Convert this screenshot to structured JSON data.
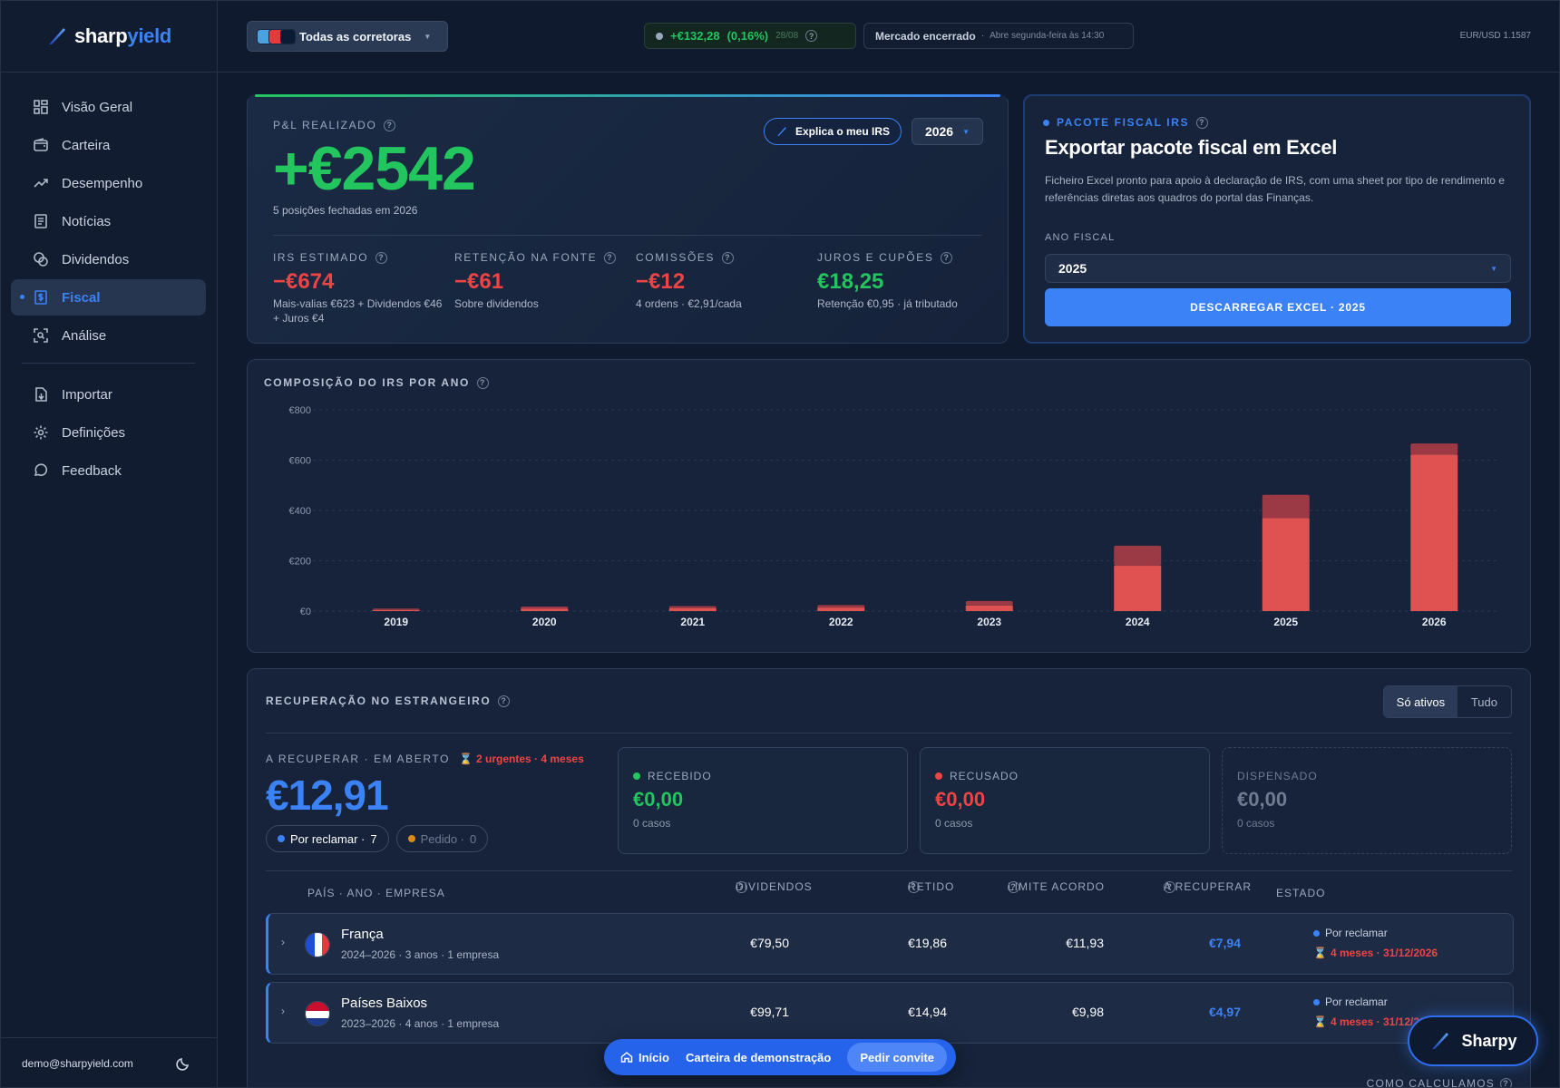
{
  "app": {
    "brand_main": "sharp",
    "brand_accent": "yield",
    "user_email": "demo@sharpyield.com"
  },
  "sidebar": {
    "items": [
      {
        "label": "Visão Geral",
        "icon": "grid-icon"
      },
      {
        "label": "Carteira",
        "icon": "wallet-icon"
      },
      {
        "label": "Desempenho",
        "icon": "trend-icon"
      },
      {
        "label": "Notícias",
        "icon": "newspaper-icon"
      },
      {
        "label": "Dividendos",
        "icon": "coins-icon"
      },
      {
        "label": "Fiscal",
        "icon": "dollar-doc-icon",
        "active": true
      },
      {
        "label": "Análise",
        "icon": "scan-icon"
      }
    ],
    "secondary": [
      {
        "label": "Importar",
        "icon": "import-icon"
      },
      {
        "label": "Definições",
        "icon": "gear-icon"
      },
      {
        "label": "Feedback",
        "icon": "chat-icon"
      }
    ]
  },
  "topbar": {
    "broker_label": "Todas as corretoras",
    "daily_change": "+€132,28",
    "daily_pct": "(0,16%)",
    "daily_date": "28/08",
    "market_status": "Mercado encerrado",
    "market_sep": "·",
    "market_next": "Abre segunda-feira às 14:30",
    "fx": "EUR/USD 1.1587"
  },
  "pl": {
    "label": "P&L REALIZADO",
    "value": "+€2542",
    "subtitle": "5 posições fechadas em 2026",
    "explain_label": "Explica o meu IRS",
    "year": "2026",
    "metrics": [
      {
        "label": "IRS ESTIMADO",
        "value": "−€674",
        "note": "Mais-valias €623 + Dividendos €46 + Juros €4",
        "tone": "neg"
      },
      {
        "label": "RETENÇÃO NA FONTE",
        "value": "−€61",
        "note": "Sobre dividendos",
        "tone": "neg"
      },
      {
        "label": "COMISSÕES",
        "value": "−€12",
        "note": "4 ordens · €2,91/cada",
        "tone": "neg"
      },
      {
        "label": "JUROS E CUPÕES",
        "value": "€18,25",
        "note": "Retenção €0,95 · já tributado",
        "tone": "pos"
      }
    ]
  },
  "fiscal": {
    "label": "PACOTE FISCAL IRS",
    "title": "Exportar pacote fiscal em Excel",
    "description": "Ficheiro Excel pronto para apoio à declaração de IRS, com uma sheet por tipo de rendimento e referências diretas aos quadros do portal das Finanças.",
    "year_label": "ANO FISCAL",
    "year_value": "2025",
    "download_label": "DESCARREGAR EXCEL · 2025"
  },
  "chart_data": {
    "type": "bar",
    "title": "COMPOSIÇÃO DO IRS POR ANO",
    "categories": [
      "2019",
      "2020",
      "2021",
      "2022",
      "2023",
      "2024",
      "2025",
      "2026"
    ],
    "series": [
      {
        "color": "#e05252",
        "values": [
          4,
          10,
          12,
          14,
          22,
          180,
          370,
          622
        ]
      },
      {
        "color": "#9b3a44",
        "values": [
          6,
          8,
          8,
          10,
          18,
          80,
          92,
          44
        ]
      }
    ],
    "y_ticks": [
      "€0",
      "€200",
      "€400",
      "€600",
      "€800"
    ],
    "ylim": [
      0,
      800
    ],
    "stacked": true,
    "grid": true
  },
  "recovery": {
    "label": "RECUPERAÇÃO NO ESTRANGEIRO",
    "toggle_on": "Só ativos",
    "toggle_off": "Tudo",
    "open_label": "A RECUPERAR · EM ABERTO",
    "urgent": "2 urgentes · 4 meses",
    "open_value": "€12,91",
    "chip_claim": "Por reclamar ·",
    "chip_claim_count": "7",
    "chip_requested": "Pedido ·",
    "chip_requested_count": "0",
    "stats": [
      {
        "label": "RECEBIDO",
        "value": "€0,00",
        "cases": "0 casos",
        "color": "#22c55e"
      },
      {
        "label": "RECUSADO",
        "value": "€0,00",
        "cases": "0 casos",
        "color": "#ef4444"
      },
      {
        "label": "DISPENSADO",
        "value": "€0,00",
        "cases": "0 casos",
        "color": "#6f7b90"
      }
    ],
    "columns": {
      "country": "PAÍS · ANO · EMPRESA",
      "dividends": "DIVIDENDOS",
      "withheld": "RETIDO",
      "limit": "LIMITE ACORDO",
      "to_recover": "A RECUPERAR",
      "status": "ESTADO"
    },
    "rows": [
      {
        "country": "França",
        "sub": "2024–2026 · 3 anos · 1 empresa",
        "dividends": "€79,50",
        "withheld": "€19,86",
        "limit": "€11,93",
        "recover": "€7,94",
        "status": "Por reclamar",
        "deadline": "4 meses · 31/12/2026"
      },
      {
        "country": "Países Baixos",
        "sub": "2023–2026 · 4 anos · 1 empresa",
        "dividends": "€99,71",
        "withheld": "€14,94",
        "limit": "€9,98",
        "recover": "€4,97",
        "status": "Por reclamar",
        "deadline": "4 meses · 31/12/2026"
      }
    ],
    "how_label": "COMO CALCULAMOS"
  },
  "bottom_bar": {
    "home": "Início",
    "demo": "Carteira de demonstração",
    "invite": "Pedir convite"
  },
  "assistant": {
    "label": "Sharpy"
  }
}
